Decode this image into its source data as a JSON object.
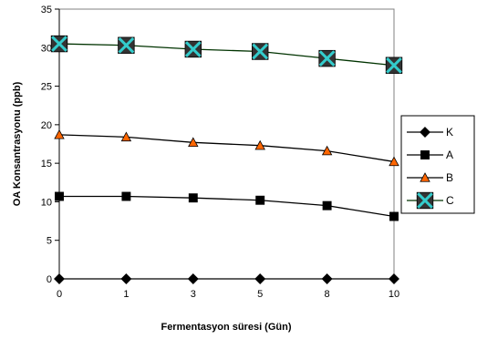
{
  "chart_data": {
    "type": "line",
    "xlabel": "Fermentasyon süresi (Gün)",
    "ylabel": "OA Konsantrasyonu (ppb)",
    "ylim": [
      0,
      35
    ],
    "yticks": [
      0,
      5,
      10,
      15,
      20,
      25,
      30,
      35
    ],
    "categories": [
      "0",
      "1",
      "3",
      "5",
      "8",
      "10"
    ],
    "grid": false,
    "legend": "right",
    "series": [
      {
        "name": "K",
        "values": [
          0,
          0,
          0,
          0,
          0,
          0
        ],
        "marker": "diamond",
        "line_color": "#000000",
        "marker_color": "#000000"
      },
      {
        "name": "A",
        "values": [
          10.7,
          10.7,
          10.5,
          10.2,
          9.5,
          8.1
        ],
        "marker": "square",
        "line_color": "#000000",
        "marker_color": "#000000"
      },
      {
        "name": "B",
        "values": [
          18.7,
          18.4,
          17.7,
          17.3,
          16.6,
          15.2
        ],
        "marker": "triangle",
        "line_color": "#000000",
        "marker_color": "#ff6600"
      },
      {
        "name": "C",
        "values": [
          30.5,
          30.3,
          29.8,
          29.5,
          28.6,
          27.7
        ],
        "marker": "xsquare",
        "line_color": "#003300",
        "marker_color": "#33cccc"
      }
    ]
  }
}
